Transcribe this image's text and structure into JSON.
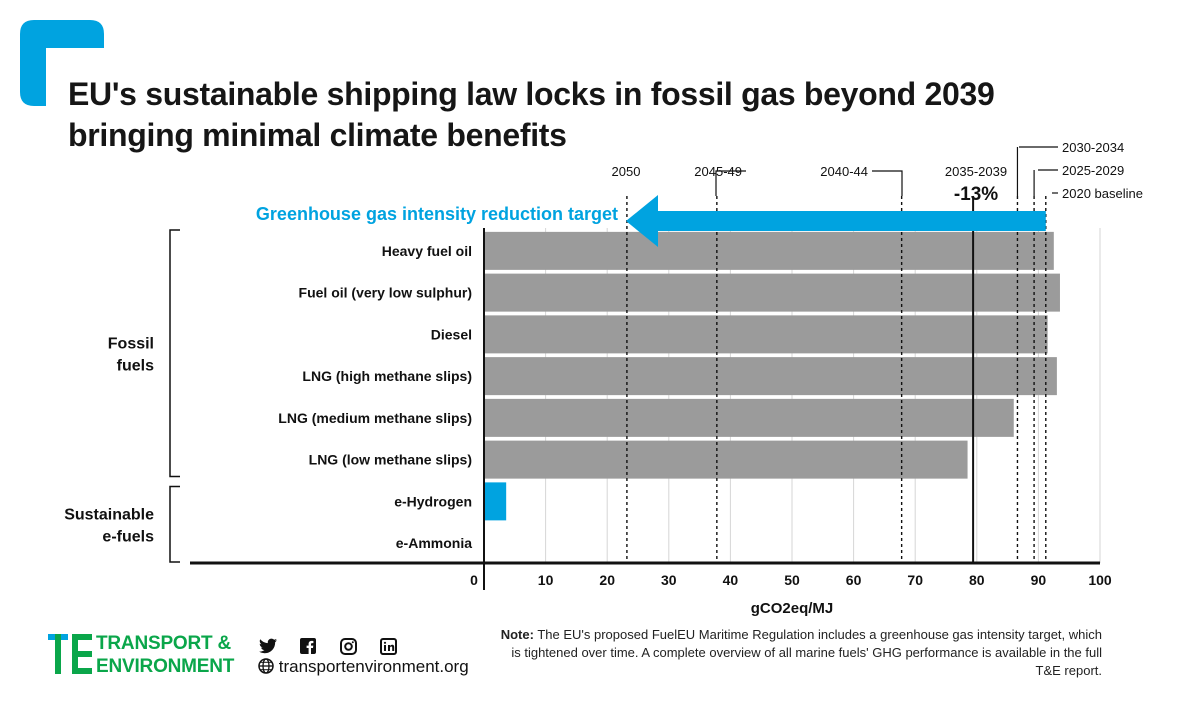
{
  "title_lines": [
    "EU's sustainable shipping law locks in fossil gas beyond 2039",
    "bringing minimal climate benefits"
  ],
  "chart_data": {
    "type": "bar",
    "orientation": "horizontal",
    "categories": [
      "Heavy fuel oil",
      "Fuel oil (very low sulphur)",
      "Diesel",
      "LNG (high methane slips)",
      "LNG (medium methane slips)",
      "LNG (low methane slips)",
      "e-Hydrogen",
      "e-Ammonia"
    ],
    "values": [
      92.5,
      93.5,
      91.5,
      93,
      86,
      78.5,
      3.6,
      0
    ],
    "bar_colors": [
      "#9b9b9b",
      "#9b9b9b",
      "#9b9b9b",
      "#9b9b9b",
      "#9b9b9b",
      "#9b9b9b",
      "#00a3e0",
      "#9b9b9b"
    ],
    "groups": [
      {
        "label_lines": [
          "Fossil",
          "fuels"
        ],
        "from": 0,
        "to": 5
      },
      {
        "label_lines": [
          "Sustainable",
          "e-fuels"
        ],
        "from": 6,
        "to": 7
      }
    ],
    "xlabel": "gCO2eq/MJ",
    "xlim": [
      0,
      100
    ],
    "xticks": [
      0,
      10,
      20,
      30,
      40,
      50,
      60,
      70,
      80,
      90,
      100
    ],
    "grid": true,
    "targets": [
      {
        "label": "2020 baseline",
        "value": 91.2
      },
      {
        "label": "2025-2029",
        "value": 89.3
      },
      {
        "label": "2030-2034",
        "value": 86.6
      },
      {
        "label": "2035-2039",
        "value": 79.4,
        "annotation": "-13%"
      },
      {
        "label": "2040-44",
        "value": 67.8
      },
      {
        "label": "2045-49",
        "value": 37.8
      },
      {
        "label": "2050",
        "value": 23.2
      }
    ],
    "target_arrow_label": "Greenhouse gas intensity reduction target"
  },
  "colors": {
    "accent": "#00a3e0",
    "bar": "#9b9b9b",
    "brand": "#0aa64a"
  },
  "brand": {
    "name_lines": [
      "TRANSPORT &",
      "ENVIRONMENT"
    ],
    "website": "transportenvironment.org",
    "social_icons": [
      "twitter-icon",
      "facebook-icon",
      "instagram-icon",
      "linkedin-icon"
    ]
  },
  "note": {
    "prefix": "Note:",
    "text": "The EU's proposed FuelEU Maritime Regulation includes a greenhouse gas intensity target, which is tightened over time. A complete overview of all marine fuels' GHG performance is available in the full T&E report."
  }
}
